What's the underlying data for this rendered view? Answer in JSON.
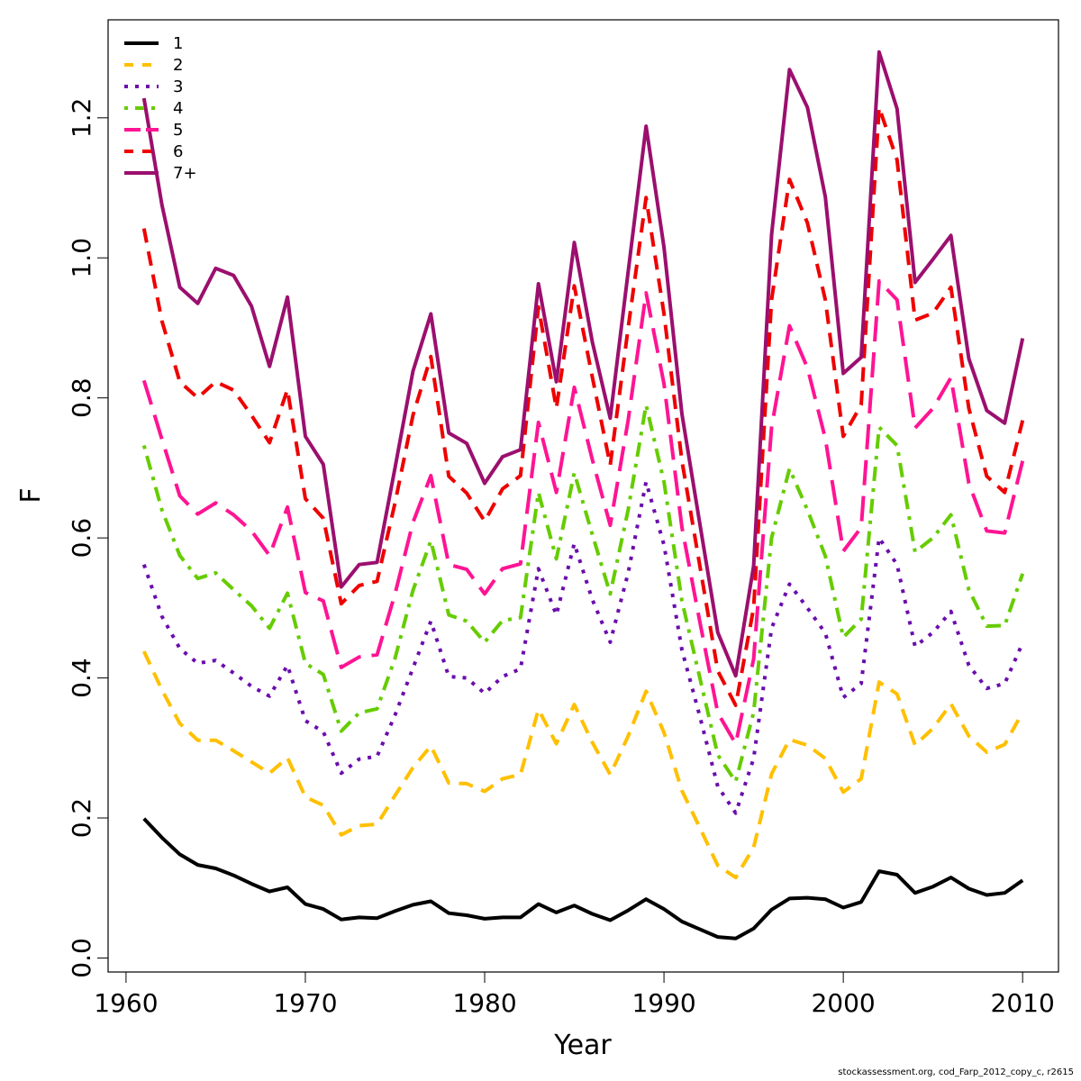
{
  "chart_data": {
    "type": "line",
    "xlabel": "Year",
    "ylabel": "F",
    "xlim": [
      1959,
      2012
    ],
    "ylim": [
      -0.02,
      1.34
    ],
    "x_ticks": [
      1960,
      1970,
      1980,
      1990,
      2000,
      2010
    ],
    "y_ticks": [
      0.0,
      0.2,
      0.4,
      0.6,
      0.8,
      1.0,
      1.2
    ],
    "x_tick_labels": [
      "1960",
      "1970",
      "1980",
      "1990",
      "2000",
      "2010"
    ],
    "y_tick_labels": [
      "0.0",
      "0.2",
      "0.4",
      "0.6",
      "0.8",
      "1.0",
      "1.2"
    ],
    "grid": false,
    "legend_position": "top-left",
    "x": [
      1961,
      1962,
      1963,
      1964,
      1965,
      1966,
      1967,
      1968,
      1969,
      1970,
      1971,
      1972,
      1973,
      1974,
      1975,
      1976,
      1977,
      1978,
      1979,
      1980,
      1981,
      1982,
      1983,
      1984,
      1985,
      1986,
      1987,
      1988,
      1989,
      1990,
      1991,
      1992,
      1993,
      1994,
      1995,
      1996,
      1997,
      1998,
      1999,
      2000,
      2001,
      2002,
      2003,
      2004,
      2005,
      2006,
      2007,
      2008,
      2009,
      2010
    ],
    "series": [
      {
        "name": "1",
        "color": "#000000",
        "dash": "solid",
        "values": [
          0.199,
          0.172,
          0.148,
          0.133,
          0.128,
          0.118,
          0.106,
          0.095,
          0.101,
          0.077,
          0.07,
          0.055,
          0.058,
          0.057,
          0.067,
          0.076,
          0.081,
          0.064,
          0.061,
          0.056,
          0.058,
          0.058,
          0.077,
          0.065,
          0.075,
          0.063,
          0.054,
          0.068,
          0.084,
          0.07,
          0.052,
          0.041,
          0.03,
          0.028,
          0.042,
          0.069,
          0.085,
          0.086,
          0.084,
          0.072,
          0.08,
          0.124,
          0.119,
          0.093,
          0.102,
          0.115,
          0.099,
          0.09,
          0.093,
          0.111
        ]
      },
      {
        "name": "2",
        "color": "#FFC000",
        "dash": "dash",
        "values": [
          0.438,
          0.383,
          0.335,
          0.311,
          0.311,
          0.296,
          0.28,
          0.264,
          0.286,
          0.23,
          0.218,
          0.176,
          0.189,
          0.191,
          0.232,
          0.272,
          0.303,
          0.25,
          0.249,
          0.238,
          0.256,
          0.262,
          0.355,
          0.306,
          0.362,
          0.308,
          0.262,
          0.317,
          0.381,
          0.322,
          0.239,
          0.186,
          0.132,
          0.115,
          0.158,
          0.263,
          0.312,
          0.304,
          0.285,
          0.237,
          0.256,
          0.394,
          0.377,
          0.304,
          0.328,
          0.363,
          0.317,
          0.294,
          0.305,
          0.351
        ]
      },
      {
        "name": "3",
        "color": "#6A0DAD",
        "dash": "dot",
        "values": [
          0.562,
          0.488,
          0.442,
          0.421,
          0.425,
          0.407,
          0.388,
          0.374,
          0.418,
          0.339,
          0.323,
          0.264,
          0.284,
          0.288,
          0.347,
          0.414,
          0.481,
          0.402,
          0.4,
          0.378,
          0.402,
          0.413,
          0.556,
          0.49,
          0.592,
          0.512,
          0.451,
          0.55,
          0.68,
          0.59,
          0.44,
          0.345,
          0.245,
          0.207,
          0.285,
          0.471,
          0.534,
          0.5,
          0.464,
          0.372,
          0.392,
          0.6,
          0.562,
          0.445,
          0.465,
          0.495,
          0.418,
          0.385,
          0.392,
          0.45
        ]
      },
      {
        "name": "4",
        "color": "#66CC00",
        "dash": "dashdot",
        "values": [
          0.732,
          0.64,
          0.575,
          0.542,
          0.55,
          0.526,
          0.503,
          0.471,
          0.521,
          0.421,
          0.405,
          0.324,
          0.35,
          0.356,
          0.428,
          0.525,
          0.596,
          0.49,
          0.481,
          0.451,
          0.482,
          0.486,
          0.665,
          0.57,
          0.693,
          0.605,
          0.52,
          0.64,
          0.79,
          0.68,
          0.51,
          0.4,
          0.29,
          0.252,
          0.351,
          0.6,
          0.699,
          0.64,
          0.574,
          0.458,
          0.484,
          0.758,
          0.732,
          0.58,
          0.6,
          0.633,
          0.526,
          0.474,
          0.475,
          0.549
        ]
      },
      {
        "name": "5",
        "color": "#FF1493",
        "dash": "longdash",
        "values": [
          0.825,
          0.741,
          0.66,
          0.634,
          0.65,
          0.633,
          0.61,
          0.575,
          0.644,
          0.522,
          0.51,
          0.415,
          0.43,
          0.433,
          0.52,
          0.622,
          0.689,
          0.562,
          0.555,
          0.52,
          0.556,
          0.563,
          0.765,
          0.665,
          0.815,
          0.712,
          0.618,
          0.768,
          0.95,
          0.82,
          0.615,
          0.48,
          0.35,
          0.306,
          0.427,
          0.758,
          0.903,
          0.843,
          0.742,
          0.581,
          0.615,
          0.967,
          0.94,
          0.757,
          0.785,
          0.829,
          0.678,
          0.61,
          0.607,
          0.71
        ]
      },
      {
        "name": "6",
        "color": "#EE0000",
        "dash": "dash",
        "values": [
          1.042,
          0.91,
          0.823,
          0.8,
          0.823,
          0.811,
          0.775,
          0.736,
          0.812,
          0.656,
          0.628,
          0.506,
          0.532,
          0.538,
          0.65,
          0.775,
          0.859,
          0.688,
          0.664,
          0.624,
          0.67,
          0.689,
          0.93,
          0.785,
          0.96,
          0.83,
          0.704,
          0.9,
          1.086,
          0.92,
          0.71,
          0.56,
          0.41,
          0.361,
          0.5,
          0.94,
          1.112,
          1.05,
          0.94,
          0.745,
          0.79,
          1.215,
          1.14,
          0.911,
          0.921,
          0.958,
          0.785,
          0.688,
          0.665,
          0.768
        ]
      },
      {
        "name": "7+",
        "color": "#9B0F6E",
        "dash": "solid",
        "values": [
          1.228,
          1.076,
          0.958,
          0.935,
          0.985,
          0.975,
          0.931,
          0.845,
          0.944,
          0.745,
          0.705,
          0.53,
          0.562,
          0.565,
          0.7,
          0.838,
          0.92,
          0.75,
          0.735,
          0.678,
          0.716,
          0.726,
          0.963,
          0.823,
          1.022,
          0.88,
          0.771,
          0.98,
          1.188,
          1.015,
          0.777,
          0.62,
          0.465,
          0.403,
          0.56,
          1.033,
          1.269,
          1.215,
          1.087,
          0.835,
          0.858,
          1.294,
          1.213,
          0.965,
          0.998,
          1.032,
          0.856,
          0.782,
          0.764,
          0.885
        ]
      }
    ]
  },
  "footer": "stockassessment.org, cod_Farp_2012_copy_c, r2615"
}
